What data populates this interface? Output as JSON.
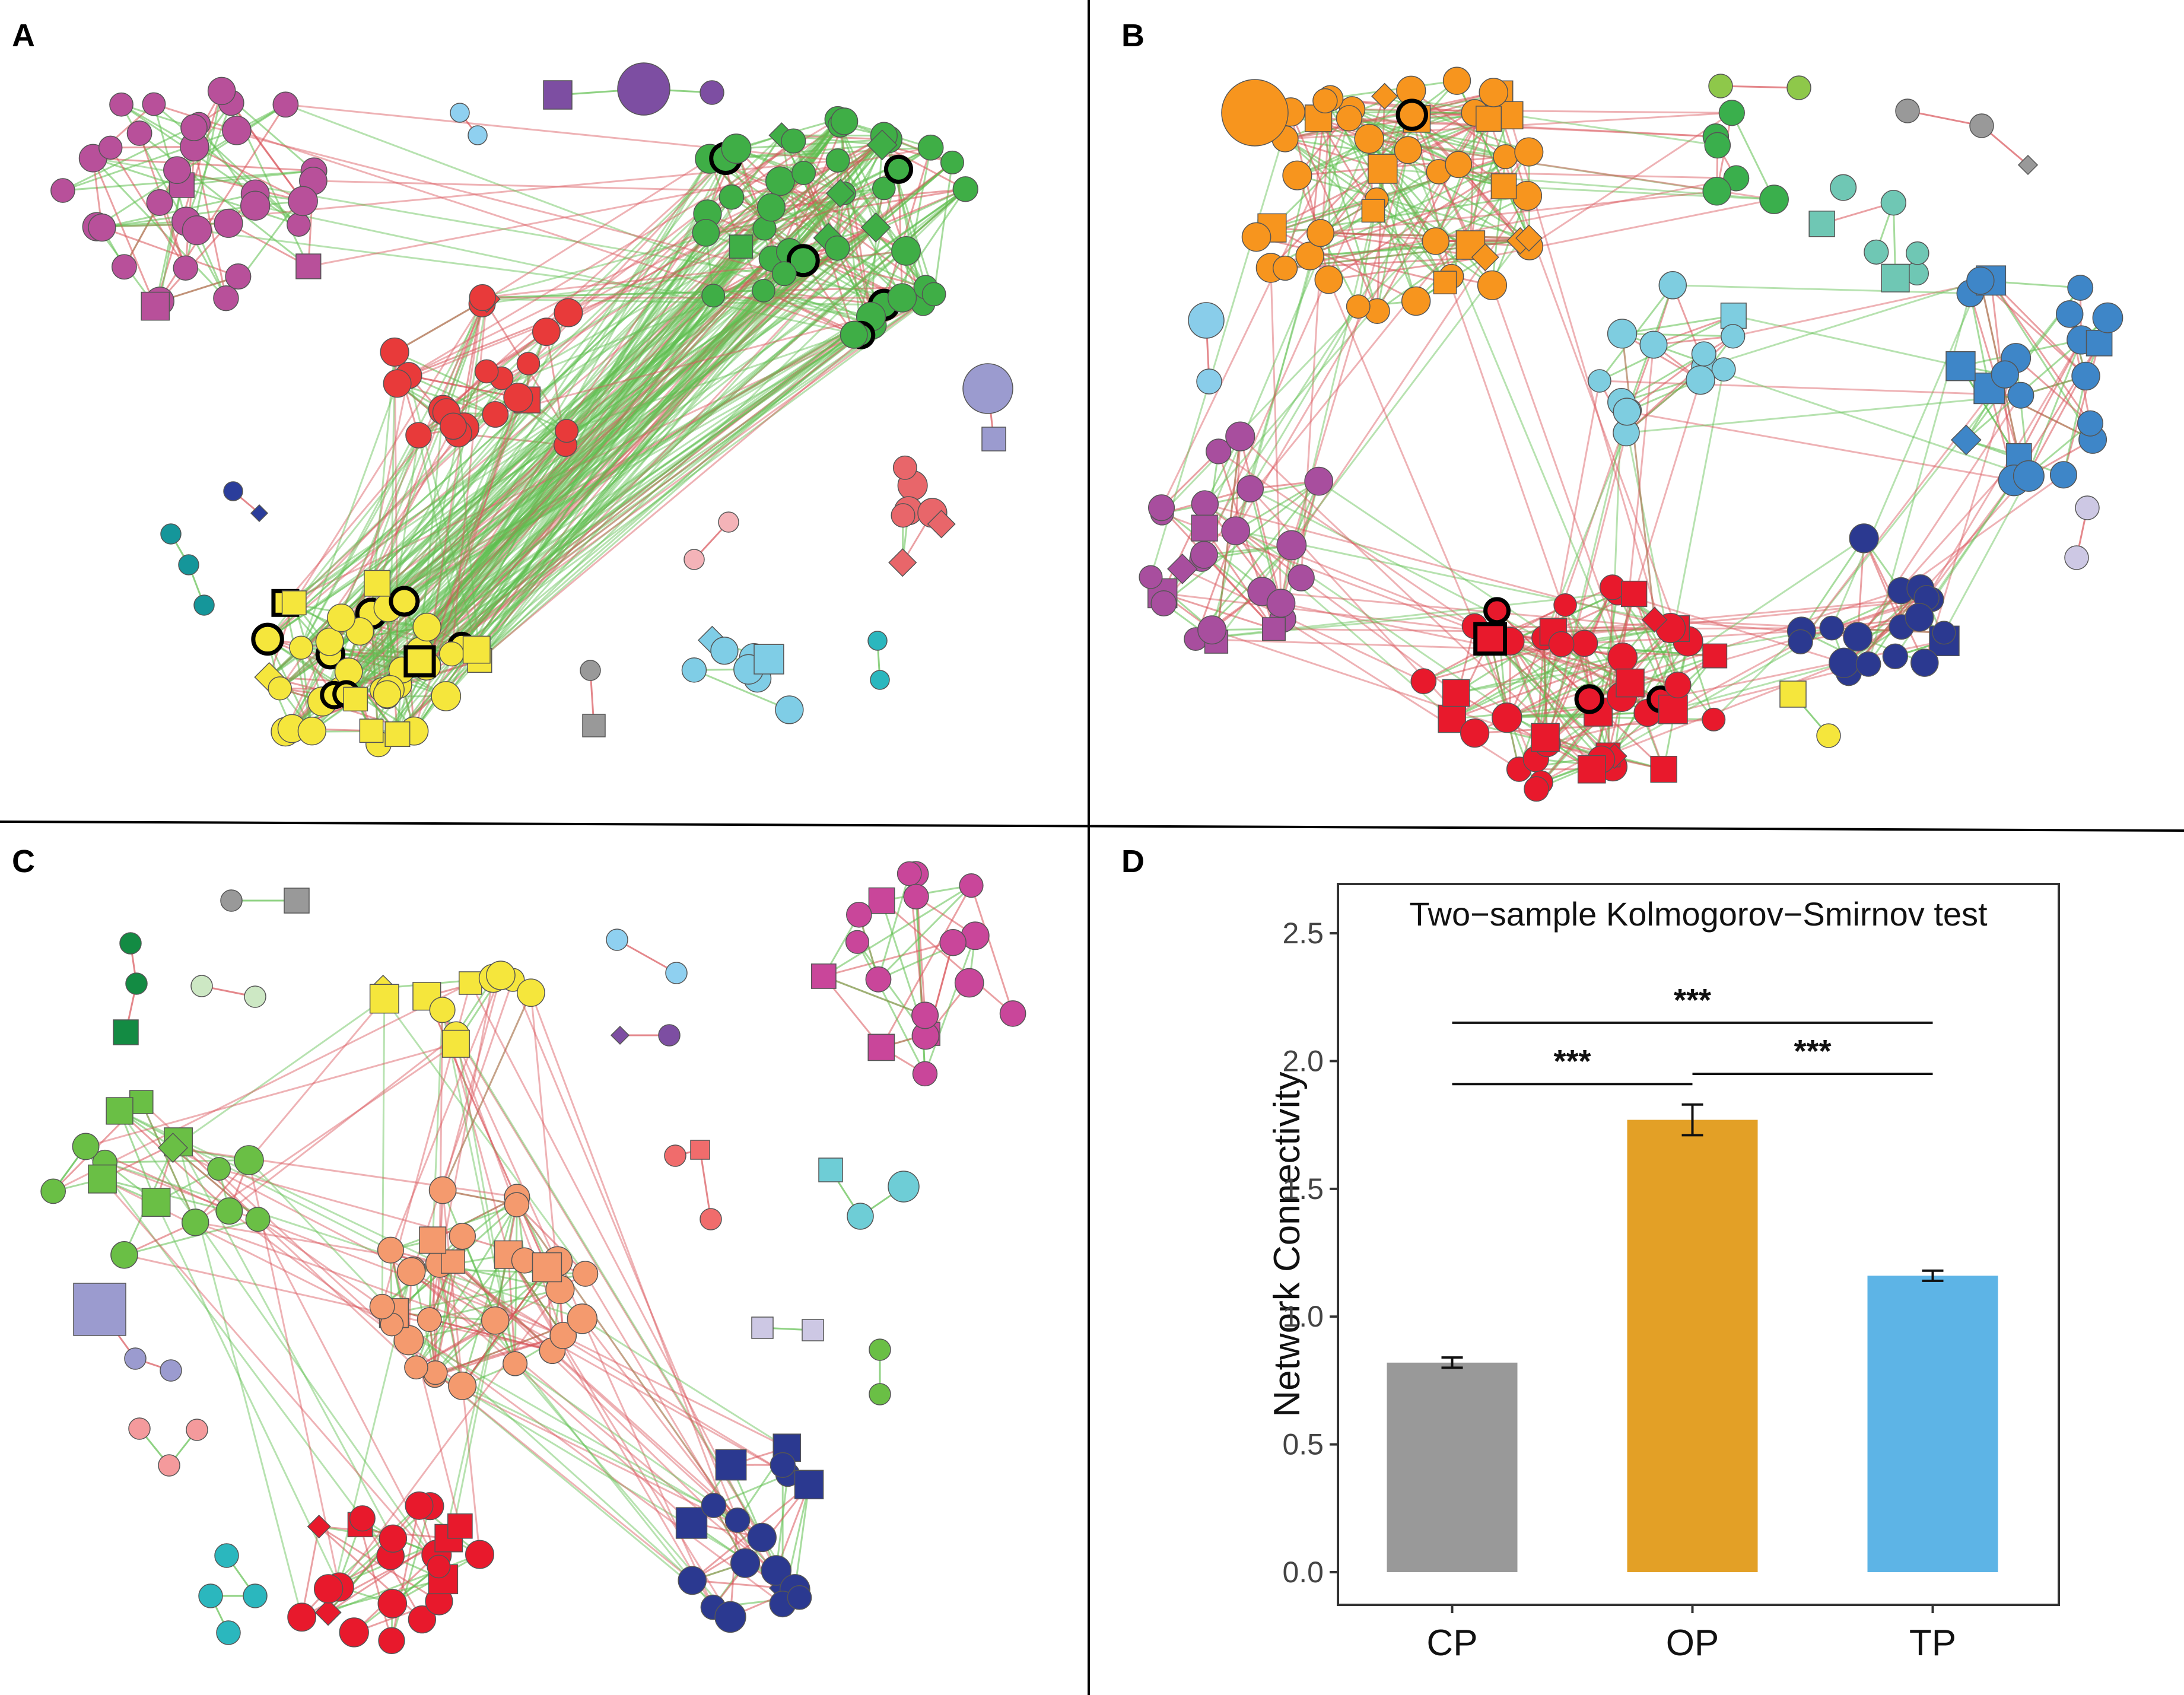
{
  "panels": {
    "a": {
      "label": "A"
    },
    "b": {
      "label": "B"
    },
    "c": {
      "label": "C"
    },
    "d": {
      "label": "D"
    }
  },
  "colors": {
    "edge_pos": "#5fbf4f",
    "edge_neg": "#d9545a",
    "node_stroke": "#555555",
    "highlight_stroke": "#000000",
    "cp": "#999999",
    "op": "#e3a026",
    "tp": "#5db4e6"
  },
  "chart_data": {
    "type": "bar",
    "title": "Two−sample Kolmogorov−Smirnov test",
    "xlabel": "",
    "ylabel": "Network Connectivity",
    "categories": [
      "CP",
      "OP",
      "TP"
    ],
    "values": [
      0.82,
      1.77,
      1.16
    ],
    "errors": [
      0.02,
      0.06,
      0.02
    ],
    "ylim": [
      0,
      2.6
    ],
    "yticks": [
      0.0,
      0.5,
      1.0,
      1.5,
      2.0,
      2.5
    ],
    "ytick_labels": [
      "0.0",
      "0.5",
      "1.0",
      "1.5",
      "2.0",
      "2.5"
    ],
    "significance": [
      {
        "from": "CP",
        "to": "OP",
        "label": "***",
        "y": 1.91
      },
      {
        "from": "OP",
        "to": "TP",
        "label": "***",
        "y": 1.95
      },
      {
        "from": "CP",
        "to": "TP",
        "label": "***",
        "y": 2.15
      }
    ]
  }
}
